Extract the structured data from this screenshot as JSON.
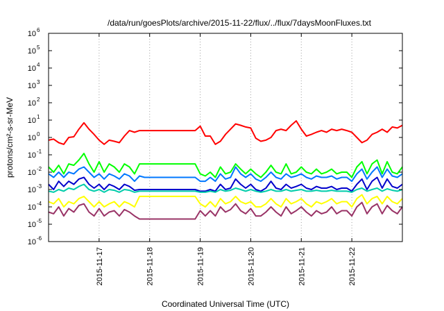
{
  "chart_data": {
    "type": "line",
    "title": "/data/run/goesPlots/archive/2015-11-22/flux/../flux/7daysMoonFluxes.txt",
    "xlabel": "Coordinated Universal Time (UTC)",
    "ylabel": "protons/cm²-s-sr-MeV",
    "yscale": "log",
    "ylim": [
      1e-06,
      1000000.0
    ],
    "xlim": [
      0,
      7
    ],
    "grid": true,
    "y_ticks": [
      {
        "base": "10",
        "exp": "-6",
        "value": 1e-06
      },
      {
        "base": "10",
        "exp": "-5",
        "value": 1e-05
      },
      {
        "base": "10",
        "exp": "-4",
        "value": 0.0001
      },
      {
        "base": "10",
        "exp": "-3",
        "value": 0.001
      },
      {
        "base": "10",
        "exp": "-2",
        "value": 0.01
      },
      {
        "base": "10",
        "exp": "-1",
        "value": 0.1
      },
      {
        "base": "10",
        "exp": "0",
        "value": 1.0
      },
      {
        "base": "10",
        "exp": "1",
        "value": 10.0
      },
      {
        "base": "10",
        "exp": "2",
        "value": 100.0
      },
      {
        "base": "10",
        "exp": "3",
        "value": 1000.0
      },
      {
        "base": "10",
        "exp": "4",
        "value": 10000.0
      },
      {
        "base": "10",
        "exp": "5",
        "value": 100000.0
      },
      {
        "base": "10",
        "exp": "6",
        "value": 1000000.0
      }
    ],
    "x_ticks": [
      {
        "label": "2015-11-17",
        "value": 1
      },
      {
        "label": "2015-11-18",
        "value": 2
      },
      {
        "label": "2015-11-19",
        "value": 3
      },
      {
        "label": "2015-11-20",
        "value": 4
      },
      {
        "label": "2015-11-21",
        "value": 5
      },
      {
        "label": "2015-11-22",
        "value": 6
      }
    ],
    "series": [
      {
        "color": "#ff0000",
        "x": [
          0.0,
          0.1,
          0.2,
          0.3,
          0.4,
          0.5,
          0.6,
          0.7,
          0.8,
          0.9,
          1.0,
          1.1,
          1.2,
          1.3,
          1.4,
          1.5,
          1.6,
          1.7,
          1.8,
          1.9,
          2.0,
          2.3,
          2.6,
          2.9,
          3.0,
          3.1,
          3.2,
          3.3,
          3.4,
          3.5,
          3.6,
          3.7,
          3.8,
          3.9,
          4.0,
          4.1,
          4.2,
          4.3,
          4.4,
          4.5,
          4.6,
          4.7,
          4.8,
          4.9,
          5.0,
          5.1,
          5.2,
          5.3,
          5.4,
          5.5,
          5.6,
          5.7,
          5.8,
          5.9,
          6.0,
          6.1,
          6.2,
          6.3,
          6.4,
          6.5,
          6.6,
          6.7,
          6.8,
          6.9,
          7.0
        ],
        "values": [
          0.7,
          0.8,
          0.5,
          0.4,
          1.0,
          1.1,
          3,
          7,
          3,
          1.5,
          0.7,
          0.4,
          0.7,
          0.6,
          0.5,
          1.2,
          2.5,
          2.0,
          2.5,
          2.5,
          2.5,
          2.5,
          2.5,
          2.5,
          4.5,
          1.2,
          1.2,
          0.4,
          0.6,
          1.5,
          3,
          6,
          5,
          4,
          3.5,
          0.9,
          0.6,
          0.7,
          1,
          2.5,
          3,
          2.5,
          5,
          9,
          3,
          1.2,
          1.5,
          2,
          2.5,
          2,
          3,
          2.5,
          3,
          2.5,
          2,
          1,
          0.5,
          0.7,
          1.5,
          2,
          3,
          2,
          4,
          3.5,
          5
        ]
      },
      {
        "color": "#00ff00",
        "x": [
          0.0,
          0.1,
          0.2,
          0.3,
          0.4,
          0.5,
          0.6,
          0.7,
          0.8,
          0.9,
          1.0,
          1.1,
          1.2,
          1.3,
          1.4,
          1.5,
          1.6,
          1.7,
          1.8,
          1.9,
          2.0,
          2.3,
          2.6,
          2.9,
          3.0,
          3.1,
          3.2,
          3.3,
          3.4,
          3.5,
          3.6,
          3.7,
          3.8,
          3.9,
          4.0,
          4.1,
          4.2,
          4.3,
          4.4,
          4.5,
          4.6,
          4.7,
          4.8,
          4.9,
          5.0,
          5.1,
          5.2,
          5.3,
          5.4,
          5.5,
          5.6,
          5.7,
          5.8,
          5.9,
          6.0,
          6.1,
          6.2,
          6.3,
          6.4,
          6.5,
          6.6,
          6.7,
          6.8,
          6.9,
          7.0
        ],
        "values": [
          0.02,
          0.01,
          0.025,
          0.008,
          0.03,
          0.025,
          0.05,
          0.12,
          0.03,
          0.01,
          0.04,
          0.01,
          0.03,
          0.02,
          0.01,
          0.03,
          0.02,
          0.008,
          0.03,
          0.03,
          0.03,
          0.03,
          0.03,
          0.03,
          0.008,
          0.006,
          0.01,
          0.005,
          0.02,
          0.008,
          0.01,
          0.03,
          0.015,
          0.008,
          0.015,
          0.008,
          0.005,
          0.01,
          0.025,
          0.01,
          0.008,
          0.03,
          0.008,
          0.01,
          0.02,
          0.01,
          0.008,
          0.015,
          0.008,
          0.01,
          0.015,
          0.008,
          0.01,
          0.01,
          0.005,
          0.02,
          0.04,
          0.008,
          0.03,
          0.05,
          0.008,
          0.04,
          0.01,
          0.008,
          0.02
        ]
      },
      {
        "color": "#0077ff",
        "x": [
          0.0,
          0.1,
          0.2,
          0.3,
          0.4,
          0.5,
          0.6,
          0.7,
          0.8,
          0.9,
          1.0,
          1.1,
          1.2,
          1.3,
          1.4,
          1.5,
          1.6,
          1.7,
          1.8,
          1.9,
          2.0,
          2.3,
          2.6,
          2.9,
          3.0,
          3.1,
          3.2,
          3.3,
          3.4,
          3.5,
          3.6,
          3.7,
          3.8,
          3.9,
          4.0,
          4.1,
          4.2,
          4.3,
          4.4,
          4.5,
          4.6,
          4.7,
          4.8,
          4.9,
          5.0,
          5.1,
          5.2,
          5.3,
          5.4,
          5.5,
          5.6,
          5.7,
          5.8,
          5.9,
          6.0,
          6.1,
          6.2,
          6.3,
          6.4,
          6.5,
          6.6,
          6.7,
          6.8,
          6.9,
          7.0
        ],
        "values": [
          0.008,
          0.005,
          0.01,
          0.005,
          0.01,
          0.008,
          0.015,
          0.02,
          0.01,
          0.005,
          0.008,
          0.004,
          0.008,
          0.006,
          0.004,
          0.008,
          0.006,
          0.003,
          0.006,
          0.005,
          0.005,
          0.005,
          0.005,
          0.005,
          0.003,
          0.003,
          0.005,
          0.003,
          0.008,
          0.004,
          0.005,
          0.02,
          0.008,
          0.005,
          0.008,
          0.004,
          0.003,
          0.005,
          0.01,
          0.005,
          0.004,
          0.008,
          0.005,
          0.006,
          0.008,
          0.005,
          0.004,
          0.006,
          0.005,
          0.005,
          0.006,
          0.004,
          0.005,
          0.005,
          0.003,
          0.008,
          0.015,
          0.004,
          0.01,
          0.02,
          0.005,
          0.015,
          0.006,
          0.005,
          0.008
        ]
      },
      {
        "color": "#0000cc",
        "x": [
          0.0,
          0.1,
          0.2,
          0.3,
          0.4,
          0.5,
          0.6,
          0.7,
          0.8,
          0.9,
          1.0,
          1.1,
          1.2,
          1.3,
          1.4,
          1.5,
          1.6,
          1.7,
          1.8,
          1.9,
          2.0,
          2.3,
          2.6,
          2.9,
          3.0,
          3.1,
          3.2,
          3.3,
          3.4,
          3.5,
          3.6,
          3.7,
          3.8,
          3.9,
          4.0,
          4.1,
          4.2,
          4.3,
          4.4,
          4.5,
          4.6,
          4.7,
          4.8,
          4.9,
          5.0,
          5.1,
          5.2,
          5.3,
          5.4,
          5.5,
          5.6,
          5.7,
          5.8,
          5.9,
          6.0,
          6.1,
          6.2,
          6.3,
          6.4,
          6.5,
          6.6,
          6.7,
          6.8,
          6.9,
          7.0
        ],
        "values": [
          0.002,
          0.001,
          0.003,
          0.0015,
          0.003,
          0.002,
          0.004,
          0.005,
          0.002,
          0.0012,
          0.002,
          0.001,
          0.002,
          0.0015,
          0.001,
          0.002,
          0.0015,
          0.0009,
          0.001,
          0.001,
          0.001,
          0.001,
          0.001,
          0.001,
          0.0008,
          0.0008,
          0.001,
          0.0008,
          0.002,
          0.001,
          0.0012,
          0.004,
          0.002,
          0.0012,
          0.002,
          0.001,
          0.0008,
          0.0012,
          0.003,
          0.0012,
          0.001,
          0.002,
          0.0012,
          0.0015,
          0.002,
          0.0012,
          0.001,
          0.0015,
          0.0012,
          0.0012,
          0.0015,
          0.001,
          0.0012,
          0.0012,
          0.0008,
          0.002,
          0.004,
          0.001,
          0.003,
          0.005,
          0.0012,
          0.004,
          0.0015,
          0.0012,
          0.002
        ]
      },
      {
        "color": "#00ccaa",
        "x": [
          0.0,
          0.1,
          0.2,
          0.3,
          0.4,
          0.5,
          0.6,
          0.7,
          0.8,
          0.9,
          1.0,
          1.1,
          1.2,
          1.3,
          1.4,
          1.5,
          1.6,
          1.7,
          1.8,
          1.9,
          2.0,
          2.3,
          2.6,
          2.9,
          3.0,
          3.1,
          3.2,
          3.3,
          3.4,
          3.5,
          3.6,
          3.7,
          3.8,
          3.9,
          4.0,
          4.1,
          4.2,
          4.3,
          4.4,
          4.5,
          4.6,
          4.7,
          4.8,
          4.9,
          5.0,
          5.1,
          5.2,
          5.3,
          5.4,
          5.5,
          5.6,
          5.7,
          5.8,
          5.9,
          6.0,
          6.1,
          6.2,
          6.3,
          6.4,
          6.5,
          6.6,
          6.7,
          6.8,
          6.9,
          7.0
        ],
        "values": [
          0.0008,
          0.0007,
          0.001,
          0.0008,
          0.0012,
          0.001,
          0.0015,
          0.002,
          0.001,
          0.0008,
          0.001,
          0.0007,
          0.001,
          0.0009,
          0.0007,
          0.001,
          0.0009,
          0.0007,
          0.0008,
          0.0008,
          0.0008,
          0.0008,
          0.0008,
          0.0008,
          0.0007,
          0.0007,
          0.0008,
          0.0007,
          0.001,
          0.0008,
          0.0009,
          0.0012,
          0.001,
          0.0008,
          0.001,
          0.0008,
          0.0007,
          0.0008,
          0.001,
          0.0008,
          0.0008,
          0.001,
          0.0008,
          0.0009,
          0.001,
          0.0008,
          0.0008,
          0.0009,
          0.0008,
          0.0008,
          0.0009,
          0.0008,
          0.0008,
          0.0008,
          0.0007,
          0.001,
          0.0012,
          0.0008,
          0.001,
          0.0012,
          0.0008,
          0.0011,
          0.0009,
          0.0008,
          0.001
        ]
      },
      {
        "color": "#ffff00",
        "x": [
          0.0,
          0.1,
          0.2,
          0.3,
          0.4,
          0.5,
          0.6,
          0.7,
          0.8,
          0.9,
          1.0,
          1.1,
          1.2,
          1.3,
          1.4,
          1.5,
          1.6,
          1.7,
          1.8,
          1.9,
          2.0,
          2.3,
          2.6,
          2.9,
          3.0,
          3.1,
          3.2,
          3.3,
          3.4,
          3.5,
          3.6,
          3.7,
          3.8,
          3.9,
          4.0,
          4.1,
          4.2,
          4.3,
          4.4,
          4.5,
          4.6,
          4.7,
          4.8,
          4.9,
          5.0,
          5.1,
          5.2,
          5.3,
          5.4,
          5.5,
          5.6,
          5.7,
          5.8,
          5.9,
          6.0,
          6.1,
          6.2,
          6.3,
          6.4,
          6.5,
          6.6,
          6.7,
          6.8,
          6.9,
          7.0
        ],
        "values": [
          0.0002,
          0.00015,
          0.0003,
          0.0001,
          0.0002,
          0.00015,
          0.0003,
          0.0004,
          0.0002,
          0.0001,
          0.0002,
          0.0001,
          0.00015,
          0.0002,
          0.0001,
          0.0002,
          0.00015,
          0.0001,
          0.0004,
          0.0004,
          0.0004,
          0.0004,
          0.0004,
          0.0004,
          0.00015,
          0.0001,
          0.0002,
          0.0001,
          0.0003,
          0.00015,
          0.0002,
          0.0004,
          0.0002,
          0.00015,
          0.0002,
          0.0001,
          0.0001,
          0.00015,
          0.0003,
          0.00015,
          0.0001,
          0.0003,
          0.00015,
          0.0002,
          0.0003,
          0.00015,
          0.0001,
          0.0002,
          0.00015,
          0.0002,
          0.0003,
          0.00015,
          0.0002,
          0.0002,
          0.0001,
          0.0003,
          0.0005,
          0.00015,
          0.0003,
          0.0004,
          0.00015,
          0.0004,
          0.0002,
          0.00015,
          0.0003
        ]
      },
      {
        "color": "#993366",
        "x": [
          0.0,
          0.1,
          0.2,
          0.3,
          0.4,
          0.5,
          0.6,
          0.7,
          0.8,
          0.9,
          1.0,
          1.1,
          1.2,
          1.3,
          1.4,
          1.5,
          1.6,
          1.7,
          1.8,
          1.9,
          2.0,
          2.3,
          2.6,
          2.9,
          3.0,
          3.1,
          3.2,
          3.3,
          3.4,
          3.5,
          3.6,
          3.7,
          3.8,
          3.9,
          4.0,
          4.1,
          4.2,
          4.3,
          4.4,
          4.5,
          4.6,
          4.7,
          4.8,
          4.9,
          5.0,
          5.1,
          5.2,
          5.3,
          5.4,
          5.5,
          5.6,
          5.7,
          5.8,
          5.9,
          6.0,
          6.1,
          6.2,
          6.3,
          6.4,
          6.5,
          6.6,
          6.7,
          6.8,
          6.9,
          7.0
        ],
        "values": [
          5e-05,
          4e-05,
          0.0001,
          3e-05,
          8e-05,
          5e-05,
          0.00012,
          0.00015,
          5e-05,
          3e-05,
          8e-05,
          3e-05,
          5e-05,
          6e-05,
          3e-05,
          7e-05,
          5e-05,
          3e-05,
          2e-05,
          2e-05,
          2e-05,
          2e-05,
          2e-05,
          2e-05,
          6e-05,
          3e-05,
          6e-05,
          3e-05,
          0.0001,
          5e-05,
          7e-05,
          0.00015,
          6e-05,
          4e-05,
          8e-05,
          3e-05,
          3e-05,
          5e-05,
          0.0001,
          5e-05,
          3e-05,
          0.0001,
          4e-05,
          6e-05,
          0.0001,
          5e-05,
          3e-05,
          6e-05,
          4e-05,
          5e-05,
          0.0001,
          4e-05,
          6e-05,
          6e-05,
          3e-05,
          0.0001,
          0.00018,
          4e-05,
          0.0001,
          0.00015,
          4e-05,
          0.00012,
          6e-05,
          4e-05,
          0.0001
        ]
      }
    ]
  }
}
